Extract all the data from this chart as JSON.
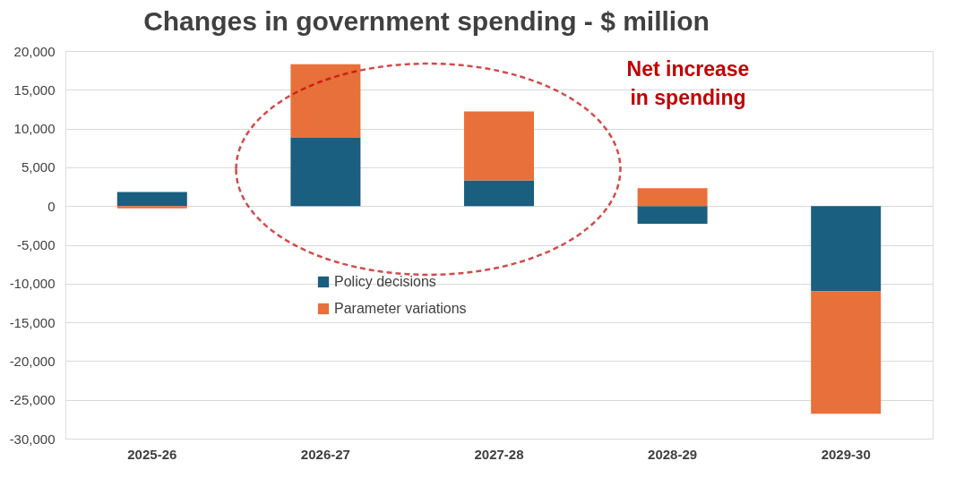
{
  "chart_data": {
    "type": "bar",
    "title": "Changes in government spending - $ million",
    "stacked": true,
    "categories": [
      "2025-26",
      "2026-27",
      "2027-28",
      "2028-29",
      "2029-30"
    ],
    "series": [
      {
        "name": "Policy decisions",
        "color": "#1a5e80",
        "values": [
          1800,
          8800,
          3300,
          -2300,
          -11000
        ]
      },
      {
        "name": "Parameter variations",
        "color": "#e8703a",
        "values": [
          -300,
          9500,
          8900,
          2300,
          -15800
        ]
      }
    ],
    "ylim": [
      -30000,
      20000
    ],
    "yticks": [
      {
        "value": -30000,
        "label": "-30,000"
      },
      {
        "value": -25000,
        "label": "-25,000"
      },
      {
        "value": -20000,
        "label": "-20,000"
      },
      {
        "value": -15000,
        "label": "-15,000"
      },
      {
        "value": -10000,
        "label": "-10,000"
      },
      {
        "value": -5000,
        "label": "-5,000"
      },
      0,
      {
        "value": 5000,
        "label": "5,000"
      },
      {
        "value": 10000,
        "label": "10,000"
      },
      {
        "value": 15000,
        "label": "15,000"
      },
      {
        "value": 20000,
        "label": "20,000"
      }
    ],
    "grid": "y",
    "legend": "center",
    "annotations": [
      "Net increase in spending"
    ]
  }
}
